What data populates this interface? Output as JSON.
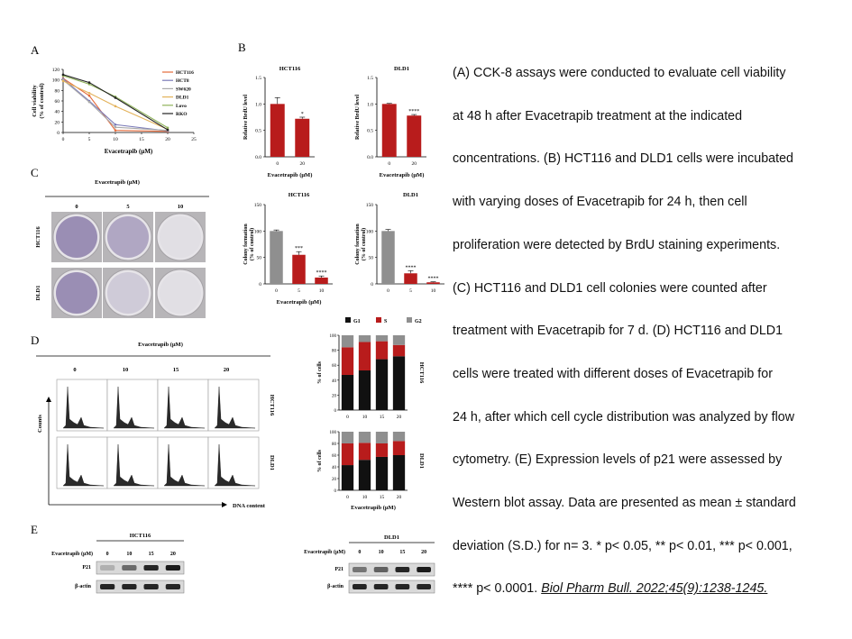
{
  "panels": {
    "a": "A",
    "b": "B",
    "c": "C",
    "d": "D",
    "e": "E"
  },
  "caption": {
    "lines": [
      "(A) CCK-8 assays were conducted to evaluate cell viability",
      "at 48 h after Evacetrapib treatment at the indicated",
      "concentrations. (B) HCT116 and DLD1 cells were incubated",
      "with varying doses of Evacetrapib for 24 h, then cell",
      "proliferation were detected by BrdU staining experiments.",
      "(C) HCT116 and DLD1 cell colonies were counted after",
      "treatment with Evacetrapib for 7 d. (D) HCT116 and DLD1",
      "cells were treated with different doses of Evacetrapib for",
      "24 h, after which cell cycle distribution was analyzed by flow",
      "cytometry. (E) Expression levels of p21 were assessed by",
      "Western blot assay. Data are presented as mean ± standard",
      "deviation (S.D.) for n= 3. * p< 0.05, ** p< 0.01, *** p< 0.001,"
    ],
    "last_line": "**** p< 0.0001. ",
    "citation": "Biol Pharm Bull. 2022;45(9):1238-1245."
  },
  "colors": {
    "red": "#b81c1c",
    "gray": "#8f8f8f",
    "black": "#1a1a1a"
  },
  "chart_data": [
    {
      "type": "line",
      "id": "A",
      "xlabel": "Evacetrapib (μM)",
      "ylabel": "Cell viability (% of control)",
      "xticks": [
        0,
        5,
        10,
        15,
        20,
        25
      ],
      "yticks": [
        0,
        20,
        40,
        60,
        80,
        100,
        120
      ],
      "xlim": [
        0,
        25
      ],
      "ylim": [
        0,
        120
      ],
      "series": [
        {
          "name": "HCT116",
          "color": "#e46a3a",
          "x": [
            0,
            5,
            10,
            20
          ],
          "y": [
            103,
            70,
            4,
            2
          ]
        },
        {
          "name": "HCT8",
          "color": "#7a7ab8",
          "x": [
            0,
            5,
            10,
            20
          ],
          "y": [
            102,
            60,
            15,
            3
          ]
        },
        {
          "name": "SW620",
          "color": "#aaaaaa",
          "x": [
            0,
            5,
            10,
            20
          ],
          "y": [
            100,
            58,
            10,
            4
          ]
        },
        {
          "name": "DLD1",
          "color": "#e3b25a",
          "x": [
            0,
            5,
            10,
            20
          ],
          "y": [
            98,
            75,
            50,
            6
          ]
        },
        {
          "name": "Lovo",
          "color": "#8fb25a",
          "x": [
            0,
            5,
            10,
            20
          ],
          "y": [
            108,
            92,
            68,
            9
          ]
        },
        {
          "name": "RKO",
          "color": "#222222",
          "x": [
            0,
            5,
            10,
            20
          ],
          "y": [
            110,
            95,
            66,
            5
          ]
        }
      ]
    },
    {
      "type": "bar",
      "id": "B-HCT116",
      "title": "HCT116",
      "categories": [
        "0",
        "20"
      ],
      "values": [
        1.0,
        0.72
      ],
      "errors": [
        0.12,
        0.03
      ],
      "colors": [
        "#b81c1c",
        "#b81c1c"
      ],
      "significance": [
        "",
        "*"
      ],
      "ylabel": "Relative BrdU level",
      "xlabel": "Evacetrapib (μM)",
      "ylim": [
        0,
        1.5
      ],
      "yticks": [
        "0.0",
        "0.5",
        "1.0",
        "1.5"
      ]
    },
    {
      "type": "bar",
      "id": "B-DLD1",
      "title": "DLD1",
      "categories": [
        "0",
        "20"
      ],
      "values": [
        1.0,
        0.78
      ],
      "errors": [
        0.01,
        0.02
      ],
      "colors": [
        "#b81c1c",
        "#b81c1c"
      ],
      "significance": [
        "",
        "****"
      ],
      "ylabel": "Relative BrdU level",
      "xlabel": "Evacetrapib (μM)",
      "ylim": [
        0,
        1.5
      ],
      "yticks": [
        "0.0",
        "0.5",
        "1.0",
        "1.5"
      ]
    },
    {
      "type": "bar",
      "id": "C-HCT116",
      "title": "HCT116",
      "categories": [
        "0",
        "5",
        "10"
      ],
      "values": [
        100,
        55,
        12
      ],
      "errors": [
        2,
        6,
        3
      ],
      "colors": [
        "#8f8f8f",
        "#b81c1c",
        "#b81c1c"
      ],
      "significance": [
        "",
        "***",
        "****"
      ],
      "ylabel": "Colony formation (% of control)",
      "xlabel": "Evacetrapib (μM)",
      "ylim": [
        0,
        150
      ],
      "yticks": [
        "0",
        "50",
        "100",
        "150"
      ]
    },
    {
      "type": "bar",
      "id": "C-DLD1",
      "title": "DLD1",
      "categories": [
        "0",
        "5",
        "10"
      ],
      "values": [
        100,
        20,
        3
      ],
      "errors": [
        3,
        5,
        1
      ],
      "colors": [
        "#8f8f8f",
        "#b81c1c",
        "#b81c1c"
      ],
      "significance": [
        "",
        "****",
        "****"
      ],
      "ylabel": "Colony formation (% of control)",
      "xlabel": "Evacetrapib (μM)",
      "ylim": [
        0,
        150
      ],
      "yticks": [
        "0",
        "50",
        "100",
        "150"
      ]
    },
    {
      "type": "bar",
      "id": "D-HCT116",
      "stacked": true,
      "title": "HCT116",
      "categories": [
        "0",
        "10",
        "15",
        "20"
      ],
      "series": [
        {
          "name": "G1",
          "color": "#111111",
          "values": [
            47,
            53,
            68,
            72
          ]
        },
        {
          "name": "S",
          "color": "#b81c1c",
          "values": [
            37,
            38,
            24,
            15
          ]
        },
        {
          "name": "G2",
          "color": "#8f8f8f",
          "values": [
            16,
            9,
            8,
            13
          ]
        }
      ],
      "ylabel": "% of cells",
      "ylim": [
        0,
        100
      ],
      "yticks": [
        "0",
        "20",
        "40",
        "60",
        "80",
        "100"
      ]
    },
    {
      "type": "bar",
      "id": "D-DLD1",
      "stacked": true,
      "title": "DLD1",
      "categories": [
        "0",
        "10",
        "15",
        "20"
      ],
      "series": [
        {
          "name": "G1",
          "color": "#111111",
          "values": [
            43,
            52,
            57,
            60
          ]
        },
        {
          "name": "S",
          "color": "#b81c1c",
          "values": [
            37,
            29,
            23,
            24
          ]
        },
        {
          "name": "G2",
          "color": "#8f8f8f",
          "values": [
            20,
            19,
            20,
            16
          ]
        }
      ],
      "ylabel": "% of cells",
      "xlabel": "Evacetrapib (μM)",
      "ylim": [
        0,
        100
      ],
      "yticks": [
        "0",
        "20",
        "40",
        "60",
        "80",
        "100"
      ]
    }
  ],
  "colony": {
    "title": "Evacetrapib (μM)",
    "doses": [
      "0",
      "5",
      "10"
    ],
    "rows": [
      "HCT116",
      "DLD1"
    ]
  },
  "flow": {
    "title": "Evacetrapib (μM)",
    "doses": [
      "0",
      "10",
      "15",
      "20"
    ],
    "rows": [
      "HCT116",
      "DLD1"
    ],
    "ylabel": "Counts",
    "xlabel": "DNA content"
  },
  "western": {
    "hct": {
      "title": "HCT116",
      "label": "Evacetrapib (μM)",
      "doses": [
        "0",
        "10",
        "15",
        "20"
      ],
      "rows": [
        "P21",
        "β-actin"
      ]
    },
    "dld": {
      "title": "DLD1",
      "label": "Evacetrapib (μM)",
      "doses": [
        "0",
        "10",
        "15",
        "20"
      ],
      "rows": [
        "P21",
        "β-actin"
      ]
    }
  }
}
